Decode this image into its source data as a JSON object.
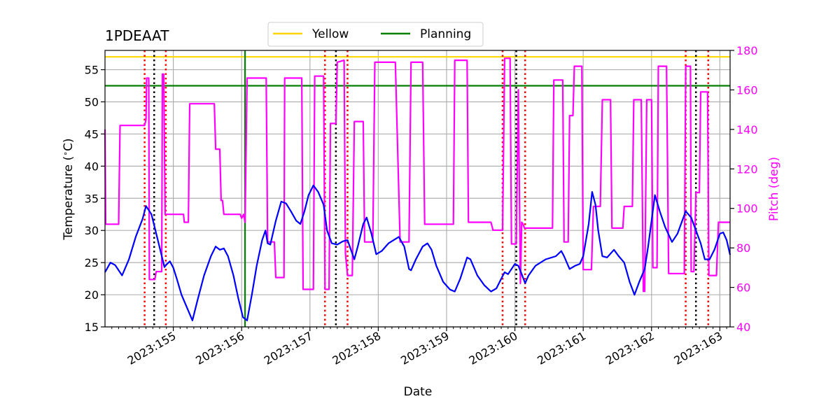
{
  "chart_data": {
    "type": "line",
    "title": "1PDEAAT",
    "xlabel": "Date",
    "ylabel_left": "Temperature (∘C)",
    "ylabel_left_parts": [
      "Temperature (",
      "∘",
      "C)"
    ],
    "ylabel_right": "Pitch (deg)",
    "xlim": [
      154.0,
      163.15
    ],
    "ylim_left": [
      15,
      58
    ],
    "ylim_right": [
      40,
      180
    ],
    "x_ticks": [
      155,
      156,
      157,
      158,
      159,
      160,
      161,
      162,
      163
    ],
    "x_tick_labels": [
      "2023:155",
      "2023:156",
      "2023:157",
      "2023:158",
      "2023:159",
      "2023:160",
      "2023:161",
      "2023:162",
      "2023:163"
    ],
    "y_left_ticks": [
      15,
      20,
      25,
      30,
      35,
      40,
      45,
      50,
      55
    ],
    "y_left_tick_labels": [
      "15",
      "20",
      "25",
      "30",
      "35",
      "40",
      "45",
      "50",
      "55"
    ],
    "y_right_ticks": [
      40,
      60,
      80,
      100,
      120,
      140,
      160,
      180
    ],
    "y_right_tick_labels": [
      "40",
      "60",
      "80",
      "100",
      "120",
      "140",
      "160",
      "180"
    ],
    "grid": true,
    "legend": {
      "position": "top-center",
      "entries": [
        {
          "label": "Yellow",
          "color": "#ffd700"
        },
        {
          "label": "Planning",
          "color": "#008000"
        }
      ]
    },
    "limits": [
      {
        "name": "Yellow",
        "value": 57.0,
        "color": "#ffd700"
      },
      {
        "name": "Planning",
        "value": 52.5,
        "color": "#008000"
      }
    ],
    "planning_vline": {
      "x": 156.05,
      "color": "#008000"
    },
    "red_dotted_vlines": [
      154.58,
      154.89,
      157.22,
      157.55,
      159.82,
      160.15,
      162.5,
      162.83
    ],
    "black_dotted_vlines": [
      154.72,
      157.38,
      160.02,
      162.65
    ],
    "series": [
      {
        "name": "Temperature",
        "axis": "left",
        "color": "#0000ff",
        "points": [
          [
            154.0,
            23.5
          ],
          [
            154.08,
            25.0
          ],
          [
            154.15,
            24.6
          ],
          [
            154.25,
            23.0
          ],
          [
            154.35,
            25.5
          ],
          [
            154.45,
            29.0
          ],
          [
            154.55,
            31.8
          ],
          [
            154.6,
            33.8
          ],
          [
            154.68,
            32.5
          ],
          [
            154.75,
            29.5
          ],
          [
            154.82,
            26.5
          ],
          [
            154.87,
            24.3
          ],
          [
            154.9,
            24.7
          ],
          [
            154.95,
            25.2
          ],
          [
            155.0,
            24.2
          ],
          [
            155.05,
            22.5
          ],
          [
            155.12,
            20.0
          ],
          [
            155.2,
            18.0
          ],
          [
            155.28,
            16.0
          ],
          [
            155.35,
            19.0
          ],
          [
            155.45,
            23.0
          ],
          [
            155.55,
            26.0
          ],
          [
            155.62,
            27.5
          ],
          [
            155.68,
            27.0
          ],
          [
            155.74,
            27.2
          ],
          [
            155.8,
            26.0
          ],
          [
            155.88,
            23.0
          ],
          [
            155.95,
            19.5
          ],
          [
            156.02,
            16.5
          ],
          [
            156.08,
            16.0
          ],
          [
            156.15,
            20.0
          ],
          [
            156.22,
            24.5
          ],
          [
            156.3,
            28.5
          ],
          [
            156.35,
            30.0
          ],
          [
            156.38,
            28.0
          ],
          [
            156.42,
            27.8
          ],
          [
            156.5,
            31.5
          ],
          [
            156.58,
            34.5
          ],
          [
            156.65,
            34.2
          ],
          [
            156.72,
            33.0
          ],
          [
            156.8,
            31.5
          ],
          [
            156.86,
            31.0
          ],
          [
            156.92,
            33.0
          ],
          [
            156.98,
            35.5
          ],
          [
            157.05,
            37.0
          ],
          [
            157.12,
            36.0
          ],
          [
            157.2,
            34.0
          ],
          [
            157.25,
            30.0
          ],
          [
            157.32,
            28.0
          ],
          [
            157.4,
            27.8
          ],
          [
            157.48,
            28.3
          ],
          [
            157.55,
            28.5
          ],
          [
            157.6,
            27.0
          ],
          [
            157.65,
            25.5
          ],
          [
            157.7,
            27.5
          ],
          [
            157.78,
            31.0
          ],
          [
            157.83,
            32.0
          ],
          [
            157.9,
            29.5
          ],
          [
            157.97,
            26.3
          ],
          [
            158.05,
            26.8
          ],
          [
            158.15,
            28.0
          ],
          [
            158.3,
            29.0
          ],
          [
            158.38,
            27.5
          ],
          [
            158.45,
            24.0
          ],
          [
            158.48,
            23.8
          ],
          [
            158.55,
            25.5
          ],
          [
            158.65,
            27.5
          ],
          [
            158.72,
            28.0
          ],
          [
            158.78,
            27.0
          ],
          [
            158.85,
            24.5
          ],
          [
            158.95,
            22.0
          ],
          [
            159.05,
            20.8
          ],
          [
            159.12,
            20.5
          ],
          [
            159.2,
            22.5
          ],
          [
            159.3,
            25.8
          ],
          [
            159.35,
            25.5
          ],
          [
            159.45,
            23.0
          ],
          [
            159.55,
            21.5
          ],
          [
            159.65,
            20.5
          ],
          [
            159.73,
            21.0
          ],
          [
            159.8,
            22.5
          ],
          [
            159.85,
            23.5
          ],
          [
            159.9,
            23.2
          ],
          [
            160.0,
            24.8
          ],
          [
            160.05,
            24.5
          ],
          [
            160.1,
            23.2
          ],
          [
            160.15,
            21.8
          ],
          [
            160.2,
            23.0
          ],
          [
            160.3,
            24.5
          ],
          [
            160.45,
            25.5
          ],
          [
            160.6,
            26.0
          ],
          [
            160.68,
            26.8
          ],
          [
            160.72,
            26.0
          ],
          [
            160.8,
            24.0
          ],
          [
            160.88,
            24.5
          ],
          [
            160.95,
            24.8
          ],
          [
            161.0,
            26.0
          ],
          [
            161.08,
            31.0
          ],
          [
            161.13,
            36.0
          ],
          [
            161.18,
            34.0
          ],
          [
            161.22,
            30.0
          ],
          [
            161.28,
            26.0
          ],
          [
            161.35,
            25.8
          ],
          [
            161.45,
            27.0
          ],
          [
            161.52,
            26.0
          ],
          [
            161.6,
            25.0
          ],
          [
            161.68,
            22.0
          ],
          [
            161.75,
            20.0
          ],
          [
            161.82,
            22.0
          ],
          [
            161.9,
            24.0
          ],
          [
            161.95,
            27.5
          ],
          [
            162.0,
            31.5
          ],
          [
            162.05,
            35.5
          ],
          [
            162.12,
            33.0
          ],
          [
            162.2,
            30.5
          ],
          [
            162.3,
            28.2
          ],
          [
            162.38,
            29.5
          ],
          [
            162.5,
            33.0
          ],
          [
            162.58,
            32.0
          ],
          [
            162.65,
            30.0
          ],
          [
            162.72,
            28.0
          ],
          [
            162.78,
            25.5
          ],
          [
            162.85,
            25.5
          ],
          [
            162.92,
            27.0
          ],
          [
            163.0,
            29.5
          ],
          [
            163.05,
            29.7
          ],
          [
            163.1,
            28.5
          ],
          [
            163.15,
            26.2
          ]
        ]
      },
      {
        "name": "Pitch",
        "axis": "right",
        "color": "#ff00ff",
        "points": [
          [
            154.0,
            140
          ],
          [
            154.01,
            92
          ],
          [
            154.2,
            92
          ],
          [
            154.22,
            142
          ],
          [
            154.58,
            142
          ],
          [
            154.6,
            145
          ],
          [
            154.61,
            166
          ],
          [
            154.64,
            166
          ],
          [
            154.65,
            64
          ],
          [
            154.73,
            64
          ],
          [
            154.75,
            68
          ],
          [
            154.83,
            68
          ],
          [
            154.84,
            168
          ],
          [
            154.86,
            168
          ],
          [
            154.88,
            97
          ],
          [
            155.15,
            97
          ],
          [
            155.16,
            93
          ],
          [
            155.22,
            93
          ],
          [
            155.24,
            153
          ],
          [
            155.6,
            153
          ],
          [
            155.62,
            130
          ],
          [
            155.68,
            130
          ],
          [
            155.7,
            104
          ],
          [
            155.72,
            104
          ],
          [
            155.74,
            97
          ],
          [
            155.98,
            97
          ],
          [
            156.0,
            95
          ],
          [
            156.03,
            97
          ],
          [
            156.05,
            93
          ],
          [
            156.08,
            166
          ],
          [
            156.36,
            166
          ],
          [
            156.38,
            83
          ],
          [
            156.48,
            83
          ],
          [
            156.5,
            65
          ],
          [
            156.62,
            65
          ],
          [
            156.63,
            166
          ],
          [
            156.88,
            166
          ],
          [
            156.9,
            59
          ],
          [
            157.05,
            59
          ],
          [
            157.07,
            167
          ],
          [
            157.2,
            167
          ],
          [
            157.22,
            59
          ],
          [
            157.28,
            59
          ],
          [
            157.3,
            143
          ],
          [
            157.38,
            143
          ],
          [
            157.4,
            174
          ],
          [
            157.5,
            175
          ],
          [
            157.52,
            77
          ],
          [
            157.55,
            66
          ],
          [
            157.62,
            66
          ],
          [
            157.65,
            144
          ],
          [
            157.78,
            144
          ],
          [
            157.8,
            83
          ],
          [
            157.92,
            83
          ],
          [
            157.95,
            174
          ],
          [
            158.25,
            174
          ],
          [
            158.28,
            135
          ],
          [
            158.32,
            83
          ],
          [
            158.45,
            83
          ],
          [
            158.48,
            174
          ],
          [
            158.65,
            174
          ],
          [
            158.68,
            92
          ],
          [
            159.1,
            92
          ],
          [
            159.12,
            175
          ],
          [
            159.3,
            175
          ],
          [
            159.32,
            93
          ],
          [
            159.65,
            93
          ],
          [
            159.68,
            89
          ],
          [
            159.82,
            89
          ],
          [
            159.85,
            176
          ],
          [
            159.93,
            176
          ],
          [
            159.95,
            82
          ],
          [
            160.02,
            82
          ],
          [
            160.05,
            160
          ],
          [
            160.08,
            62
          ],
          [
            160.1,
            93
          ],
          [
            160.12,
            92
          ],
          [
            160.14,
            90
          ],
          [
            160.55,
            90
          ],
          [
            160.57,
            165
          ],
          [
            160.7,
            165
          ],
          [
            160.72,
            83
          ],
          [
            160.78,
            83
          ],
          [
            160.8,
            147
          ],
          [
            160.85,
            147
          ],
          [
            160.87,
            172
          ],
          [
            160.98,
            172
          ],
          [
            161.0,
            69
          ],
          [
            161.12,
            69
          ],
          [
            161.15,
            101
          ],
          [
            161.25,
            101
          ],
          [
            161.28,
            155
          ],
          [
            161.4,
            155
          ],
          [
            161.42,
            90
          ],
          [
            161.58,
            90
          ],
          [
            161.6,
            101
          ],
          [
            161.72,
            101
          ],
          [
            161.74,
            155
          ],
          [
            161.85,
            155
          ],
          [
            161.88,
            58
          ],
          [
            161.9,
            58
          ],
          [
            161.93,
            155
          ],
          [
            162.0,
            155
          ],
          [
            162.02,
            70
          ],
          [
            162.08,
            70
          ],
          [
            162.1,
            172
          ],
          [
            162.22,
            172
          ],
          [
            162.25,
            67
          ],
          [
            162.48,
            67
          ],
          [
            162.5,
            172
          ],
          [
            162.57,
            172
          ],
          [
            162.58,
            68
          ],
          [
            162.62,
            68
          ],
          [
            162.65,
            108
          ],
          [
            162.7,
            108
          ],
          [
            162.72,
            159
          ],
          [
            162.82,
            159
          ],
          [
            162.84,
            66
          ],
          [
            162.95,
            66
          ],
          [
            162.98,
            93
          ],
          [
            163.15,
            93
          ]
        ]
      }
    ]
  }
}
